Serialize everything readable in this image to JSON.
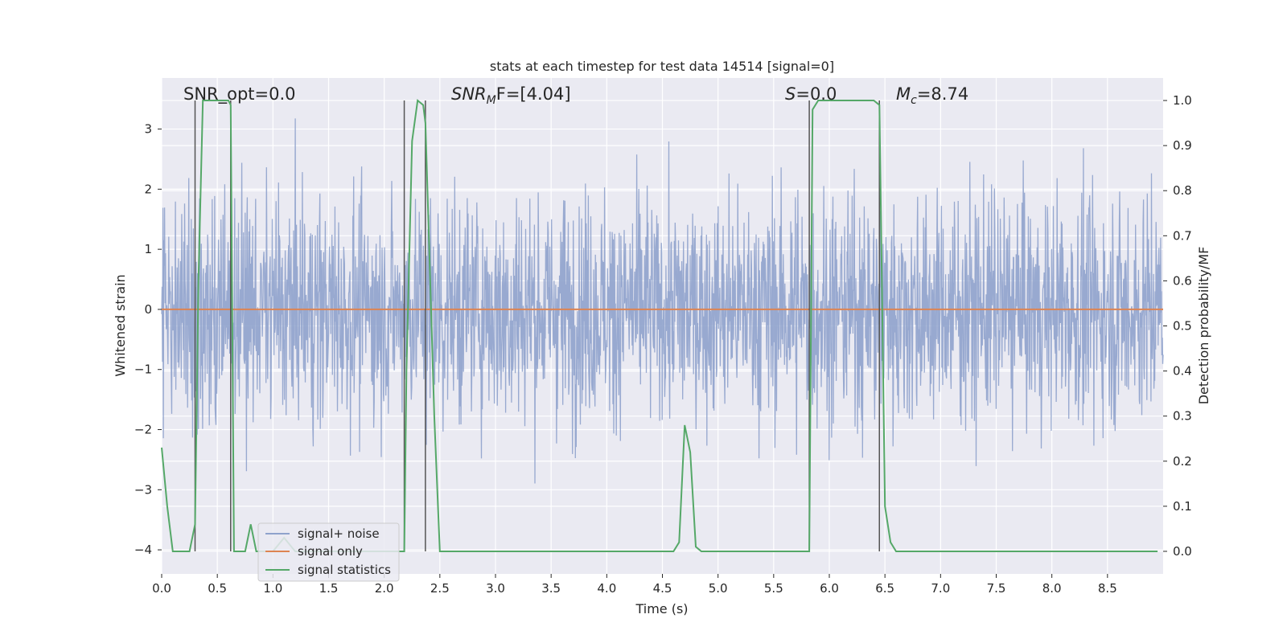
{
  "chart_data": {
    "type": "line",
    "title": "stats at each timestep for test data 14514 [signal=0]",
    "xlabel": "Time (s)",
    "ylabel_left": "Whitened strain",
    "ylabel_right": "Detection probability/MF",
    "xlim": [
      0.0,
      9.0
    ],
    "ylim_left": [
      -4.4,
      3.85
    ],
    "ylim_right": [
      -0.05,
      1.05
    ],
    "x_ticks": [
      "0.0",
      "0.5",
      "1.0",
      "1.5",
      "2.0",
      "2.5",
      "3.0",
      "3.5",
      "4.0",
      "4.5",
      "5.0",
      "5.5",
      "6.0",
      "6.5",
      "7.0",
      "7.5",
      "8.0",
      "8.5"
    ],
    "x_tick_values": [
      0.0,
      0.5,
      1.0,
      1.5,
      2.0,
      2.5,
      3.0,
      3.5,
      4.0,
      4.5,
      5.0,
      5.5,
      6.0,
      6.5,
      7.0,
      7.5,
      8.0,
      8.5
    ],
    "y_ticks_left": [
      "−4",
      "−3",
      "−2",
      "−1",
      "0",
      "1",
      "2",
      "3"
    ],
    "y_tick_values_left": [
      -4,
      -3,
      -2,
      -1,
      0,
      1,
      2,
      3
    ],
    "y_ticks_right": [
      "0.0",
      "0.1",
      "0.2",
      "0.3",
      "0.4",
      "0.5",
      "0.6",
      "0.7",
      "0.8",
      "0.9",
      "1.0"
    ],
    "y_tick_values_right": [
      0.0,
      0.1,
      0.2,
      0.3,
      0.4,
      0.5,
      0.6,
      0.7,
      0.8,
      0.9,
      1.0
    ],
    "annotations": {
      "snr_opt": "SNR_opt=0.0",
      "snr_mf_main": "SNR",
      "snr_mf_sub": "M",
      "snr_mf_rest": "F=[4.04]",
      "s_main": "S",
      "s_rest": "=0.0",
      "mc_main": "M",
      "mc_sub": "c",
      "mc_rest": "=8.74"
    },
    "vertical_markers": [
      0.3,
      0.62,
      2.18,
      2.37,
      5.82,
      6.45
    ],
    "series": [
      {
        "name": "signal+ noise",
        "color": "#8fa2cc",
        "axis": "left",
        "description_values": {
          "typical_range": [
            -2.0,
            2.0
          ],
          "extreme_range": [
            -3.6,
            3.5
          ]
        }
      },
      {
        "name": "signal only",
        "color": "#dd8452",
        "axis": "left",
        "x": [
          0.0,
          9.0
        ],
        "y": [
          0.0,
          0.0
        ]
      },
      {
        "name": "signal statistics",
        "color": "#55a868",
        "axis": "right",
        "x": [
          0.0,
          0.05,
          0.1,
          0.2,
          0.25,
          0.3,
          0.33,
          0.37,
          0.4,
          0.5,
          0.55,
          0.6,
          0.62,
          0.65,
          0.7,
          0.75,
          0.8,
          0.85,
          0.9,
          1.0,
          1.1,
          1.2,
          1.3,
          1.4,
          1.5,
          1.6,
          1.7,
          1.8,
          1.9,
          2.0,
          2.1,
          2.18,
          2.2,
          2.25,
          2.3,
          2.35,
          2.37,
          2.45,
          2.5,
          2.6,
          3.0,
          3.5,
          4.0,
          4.5,
          4.6,
          4.65,
          4.7,
          4.75,
          4.8,
          4.85,
          4.9,
          5.0,
          5.5,
          5.82,
          5.85,
          5.9,
          6.0,
          6.2,
          6.4,
          6.45,
          6.5,
          6.55,
          6.6,
          6.7,
          7.0,
          7.5,
          7.6,
          7.7,
          8.0,
          8.5,
          8.95
        ],
        "y": [
          0.23,
          0.1,
          0.0,
          0.0,
          0.0,
          0.06,
          0.6,
          1.0,
          1.0,
          1.0,
          1.0,
          1.0,
          0.99,
          0.0,
          0.0,
          0.0,
          0.06,
          0.0,
          0.0,
          0.0,
          0.03,
          0.0,
          0.0,
          0.0,
          0.0,
          0.0,
          0.0,
          0.0,
          0.0,
          0.0,
          0.0,
          0.0,
          0.4,
          0.91,
          1.0,
          0.99,
          0.95,
          0.3,
          0.0,
          0.0,
          0.0,
          0.0,
          0.0,
          0.0,
          0.0,
          0.02,
          0.28,
          0.22,
          0.01,
          0.0,
          0.0,
          0.0,
          0.0,
          0.0,
          0.98,
          1.0,
          1.0,
          1.0,
          1.0,
          0.99,
          0.1,
          0.02,
          0.0,
          0.0,
          0.0,
          0.0,
          0.0,
          0.0,
          0.0,
          0.0,
          0.0
        ]
      }
    ],
    "legend": {
      "position": "lower-left",
      "entries": [
        "signal+ noise",
        "signal only",
        "signal statistics"
      ]
    },
    "grid": true
  }
}
